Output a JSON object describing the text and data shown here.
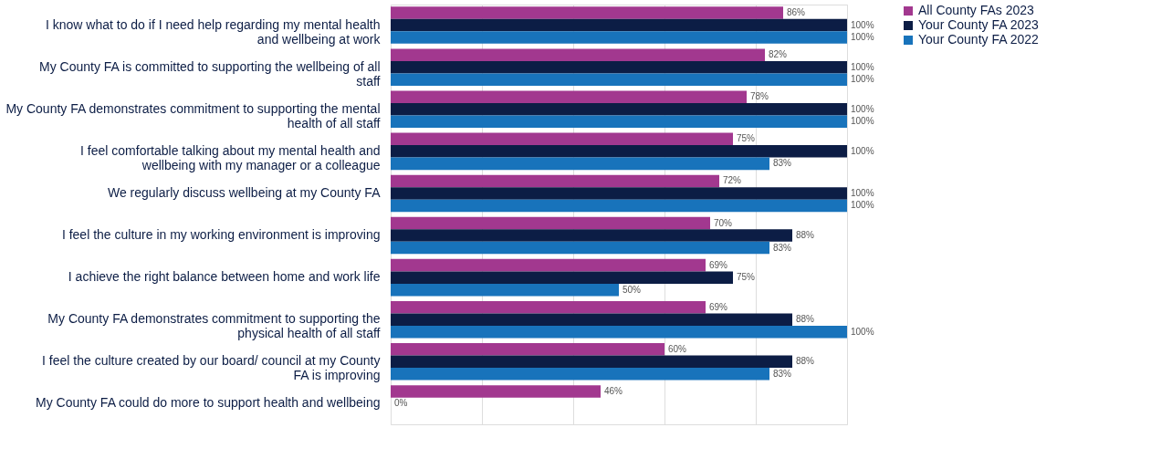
{
  "chart_data": {
    "type": "bar",
    "orientation": "horizontal",
    "categories": [
      "I know what to do if I need help regarding my mental health and wellbeing at work",
      "My County FA is committed to supporting the wellbeing of all staff",
      "My County FA demonstrates commitment to supporting the mental health of all staff",
      "I feel comfortable talking about my mental health and wellbeing with my manager or a colleague",
      "We regularly discuss wellbeing at my County FA",
      "I feel the culture in my working environment is improving",
      "I achieve the right balance between home and work life",
      "My County FA demonstrates commitment to supporting the physical health of all staff",
      "I feel the culture created by our board/ council at my County FA is improving",
      "My County FA could do more to support health and wellbeing"
    ],
    "series": [
      {
        "name": "All County FAs 2023",
        "color": "#a2388f",
        "values": [
          86,
          82,
          78,
          75,
          72,
          70,
          69,
          69,
          60,
          46
        ],
        "value_labels": [
          "86%",
          "82%",
          "78%",
          "75%",
          "72%",
          "70%",
          "69%",
          "69%",
          "60%",
          "46%"
        ]
      },
      {
        "name": "Your County FA 2023",
        "color": "#0c1d45",
        "values": [
          100,
          100,
          100,
          100,
          100,
          88,
          75,
          88,
          88,
          0
        ],
        "value_labels": [
          "100%",
          "100%",
          "100%",
          "100%",
          "100%",
          "88%",
          "75%",
          "88%",
          "88%",
          "0%"
        ]
      },
      {
        "name": "Your County FA 2022",
        "color": "#1873bb",
        "values": [
          100,
          100,
          100,
          83,
          100,
          83,
          50,
          100,
          83,
          null
        ],
        "value_labels": [
          "100%",
          "100%",
          "100%",
          "83%",
          "100%",
          "83%",
          "50%",
          "100%",
          "83%",
          null
        ]
      }
    ],
    "xlim": [
      0,
      100
    ],
    "xticks": [
      {
        "value": 0,
        "label": null
      },
      {
        "value": 20,
        "label": null
      },
      {
        "value": 40,
        "label": null
      },
      {
        "value": 60,
        "label": null
      },
      {
        "value": 80,
        "label": null
      },
      {
        "value": 100,
        "label": null
      }
    ],
    "grid": "x",
    "legend": "right",
    "tick_labels": "y"
  }
}
